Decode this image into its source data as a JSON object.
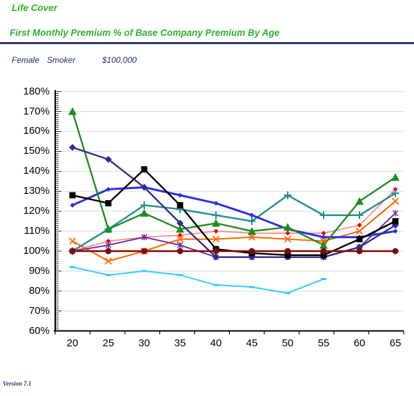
{
  "header": {
    "product_title": "Life Cover",
    "chart_title": "First Monthly Premium % of Base Company Premium By Age",
    "accent_green": "#2DB22D",
    "rule_navy": "#2B3575"
  },
  "subheader": {
    "gender": "Female",
    "smoker_status": "Smoker",
    "sum_assured": "$100,000",
    "text_navy": "#1F2F6E"
  },
  "footer": {
    "version_label": "Version 7.1"
  },
  "chart_data": {
    "type": "line",
    "title": "First Monthly Premium % of Base Company Premium By Age",
    "xlabel": "",
    "ylabel": "",
    "x": [
      20,
      25,
      30,
      35,
      40,
      45,
      50,
      55,
      60,
      65
    ],
    "x_tick_labels": [
      "20",
      "25",
      "30",
      "35",
      "40",
      "45",
      "50",
      "55",
      "60",
      "65"
    ],
    "y_tick_labels": [
      "180%",
      "170%",
      "160%",
      "150%",
      "140%",
      "130%",
      "120%",
      "110%",
      "100%",
      "90%",
      "80%",
      "70%",
      "60%"
    ],
    "ylim": [
      60,
      180
    ],
    "y_major_step": 10,
    "grid": true,
    "legend": "none",
    "grid_color": "#D9D9D9",
    "axis_color": "#000000",
    "series": [
      {
        "name": "cyan-dash",
        "color": "#33CCFF",
        "marker": "dash",
        "marker_color": "#33CCFF",
        "width": 2,
        "size": 4,
        "values": [
          92,
          88,
          90,
          88,
          83,
          82,
          79,
          86,
          null,
          null
        ]
      },
      {
        "name": "pink-red-diamond",
        "color": "#FF8080",
        "marker": "diamond",
        "marker_color": "#E60000",
        "width": 1.6,
        "size": 3.5,
        "values": [
          100,
          105,
          107,
          108,
          110,
          109,
          109,
          109,
          113,
          131
        ]
      },
      {
        "name": "orange-x",
        "color": "#FF6600",
        "marker": "x",
        "marker_color": "#FF6600",
        "width": 2,
        "size": 4.5,
        "values": [
          105,
          95,
          100,
          106,
          106,
          107,
          106,
          105,
          110,
          125
        ]
      },
      {
        "name": "purple-asterisk",
        "color": "#7030A0",
        "marker": "asterisk",
        "marker_color": "#7030A0",
        "width": 2,
        "size": 4.5,
        "values": [
          100,
          103,
          107,
          103,
          97,
          97,
          97,
          97,
          102,
          119
        ]
      },
      {
        "name": "teal-plus",
        "color": "#218C8C",
        "marker": "plus",
        "marker_color": "#218C8C",
        "width": 2.4,
        "size": 5.5,
        "values": [
          100,
          111,
          123,
          121,
          118,
          115,
          128,
          118,
          118,
          129
        ]
      },
      {
        "name": "royal-blue",
        "color": "#2E2EE6",
        "marker": "diamond",
        "marker_color": "#2E2EE6",
        "width": 3,
        "size": 3.5,
        "values": [
          123,
          131,
          132,
          128,
          124,
          118,
          111,
          107,
          107,
          110
        ]
      },
      {
        "name": "green-triangle",
        "color": "#1E8C1E",
        "marker": "triangle",
        "marker_color": "#1E8C1E",
        "width": 2.4,
        "size": 6,
        "values": [
          170,
          111,
          119,
          111,
          114,
          110,
          112,
          103,
          125,
          137
        ]
      },
      {
        "name": "navy-diamond",
        "color": "#2D2D8F",
        "marker": "diamond",
        "marker_color": "#2D2D8F",
        "width": 2.4,
        "size": 5,
        "values": [
          152,
          146,
          132,
          114,
          97,
          97,
          97,
          97,
          102,
          113
        ]
      },
      {
        "name": "black-square",
        "color": "#000000",
        "marker": "square",
        "marker_color": "#000000",
        "width": 2.4,
        "size": 4.5,
        "values": [
          128,
          124,
          141,
          123,
          101,
          99,
          98,
          98,
          106,
          115
        ]
      },
      {
        "name": "base-company",
        "color": "#8B0000",
        "marker": "circle",
        "marker_color": "#7A0C0C",
        "width": 2.4,
        "size": 4.5,
        "values": [
          100,
          100,
          100,
          100,
          100,
          100,
          100,
          100,
          100,
          100
        ]
      }
    ]
  }
}
